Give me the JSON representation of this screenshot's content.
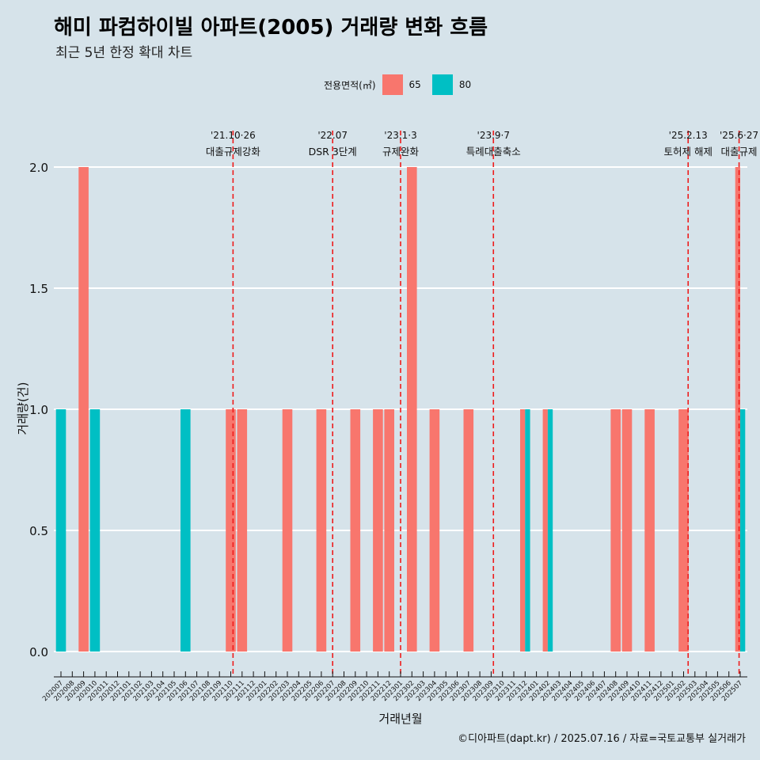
{
  "chart_data": {
    "type": "bar",
    "title": "해미 파컴하이빌 아파트(2005) 거래량 변화 흐름",
    "subtitle": "최근 5년 한정 확대 차트",
    "xlabel": "거래년월",
    "ylabel": "거래량(건)",
    "ylim": [
      0,
      2.12
    ],
    "yticks": [
      "0.0",
      "0.5",
      "1.0",
      "1.5",
      "2.0"
    ],
    "legend_title": "전용면적(㎡)",
    "legend_position": "top",
    "categories": [
      "202007",
      "202008",
      "202009",
      "202010",
      "202011",
      "202012",
      "202101",
      "202102",
      "202103",
      "202104",
      "202105",
      "202106",
      "202107",
      "202108",
      "202109",
      "202110",
      "202111",
      "202112",
      "202201",
      "202202",
      "202203",
      "202204",
      "202205",
      "202206",
      "202207",
      "202208",
      "202209",
      "202210",
      "202211",
      "202212",
      "202301",
      "202302",
      "202303",
      "202304",
      "202305",
      "202306",
      "202307",
      "202308",
      "202309",
      "202310",
      "202311",
      "202312",
      "202401",
      "202402",
      "202403",
      "202404",
      "202405",
      "202406",
      "202407",
      "202408",
      "202409",
      "202410",
      "202411",
      "202412",
      "202501",
      "202502",
      "202503",
      "202504",
      "202505",
      "202506",
      "202507"
    ],
    "series": [
      {
        "name": "65",
        "color": "#f8766d",
        "values": [
          0,
          0,
          2,
          0,
          0,
          0,
          0,
          0,
          0,
          0,
          0,
          0,
          0,
          0,
          0,
          1,
          1,
          0,
          0,
          0,
          1,
          0,
          0,
          1,
          0,
          0,
          1,
          0,
          1,
          1,
          0,
          2,
          0,
          1,
          0,
          0,
          1,
          0,
          0,
          0,
          0,
          1,
          0,
          1,
          0,
          0,
          0,
          0,
          0,
          1,
          1,
          0,
          1,
          0,
          0,
          1,
          0,
          0,
          0,
          0,
          2
        ]
      },
      {
        "name": "80",
        "color": "#00bfc4",
        "values": [
          1,
          0,
          0,
          1,
          0,
          0,
          0,
          0,
          0,
          0,
          0,
          1,
          0,
          0,
          0,
          0,
          0,
          0,
          0,
          0,
          0,
          0,
          0,
          0,
          0,
          0,
          0,
          0,
          0,
          0,
          0,
          0,
          0,
          0,
          0,
          0,
          0,
          0,
          0,
          0,
          0,
          1,
          0,
          1,
          0,
          0,
          0,
          0,
          0,
          0,
          0,
          0,
          0,
          0,
          0,
          0,
          0,
          0,
          0,
          0,
          1
        ]
      }
    ],
    "events": [
      {
        "date": "'21.10·26",
        "label": "대출규제강화",
        "at": "202110",
        "offset": 0.2
      },
      {
        "date": "'22.07",
        "label": "DSR 3단계",
        "at": "202207",
        "offset": 0
      },
      {
        "date": "'23.1·3",
        "label": "규제완화",
        "at": "202301",
        "offset": 0
      },
      {
        "date": "'23.9·7",
        "label": "특례대출축소",
        "at": "202309",
        "offset": 0.2
      },
      {
        "date": "'25.2.13",
        "label": "토허제 해제",
        "at": "202502",
        "offset": 0.4
      },
      {
        "date": "'25.6·27",
        "label": "대출규제",
        "at": "202506",
        "offset": 0.9
      }
    ],
    "caption": "©디아파트(dapt.kr) / 2025.07.16 / 자료=국토교통부 실거래가"
  }
}
